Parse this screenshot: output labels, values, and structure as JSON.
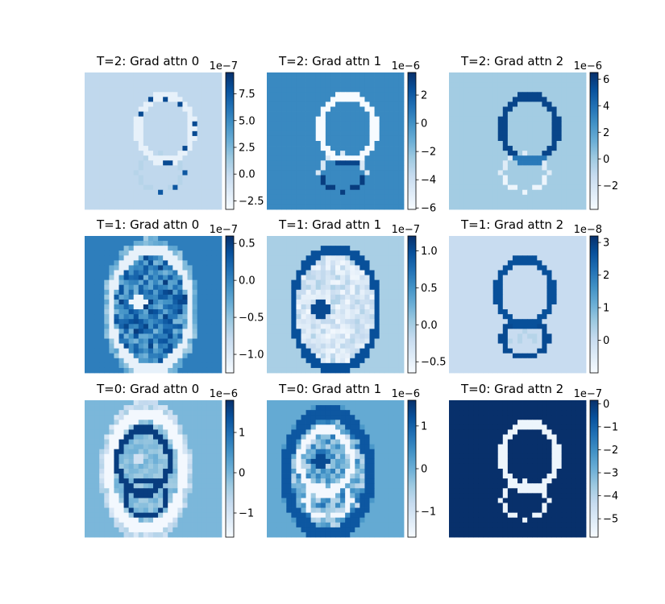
{
  "chart_data": [
    {
      "type": "heatmap",
      "title": "T=2: Grad attn 0",
      "colorbar": {
        "offset_text": "1e−7",
        "ticks": [
          "7.5",
          "5.0",
          "2.5",
          "0.0",
          "−2.5"
        ],
        "tick_values": [
          7.5,
          5.0,
          2.5,
          0.0,
          -2.5
        ],
        "range": [
          -3.3,
          9.5
        ]
      },
      "background_level": 0.27,
      "pattern": "outline"
    },
    {
      "type": "heatmap",
      "title": "T=2: Grad attn 1",
      "colorbar": {
        "offset_text": "1e−6",
        "ticks": [
          "2",
          "0",
          "−2",
          "−4",
          "−6"
        ],
        "tick_values": [
          2,
          0,
          -2,
          -4,
          -6
        ],
        "range": [
          -6.1,
          3.6
        ]
      },
      "background_level": 0.66,
      "pattern": "outline"
    },
    {
      "type": "heatmap",
      "title": "T=2: Grad attn 2",
      "colorbar": {
        "offset_text": "1e−6",
        "ticks": [
          "6",
          "4",
          "2",
          "0",
          "−2"
        ],
        "tick_values": [
          6,
          4,
          2,
          0,
          -2
        ],
        "range": [
          -3.8,
          6.5
        ]
      },
      "background_level": 0.36,
      "pattern": "outline"
    },
    {
      "type": "heatmap",
      "title": "T=1: Grad attn 0",
      "colorbar": {
        "offset_text": "1e−7",
        "ticks": [
          "0.5",
          "0.0",
          "−0.5",
          "−1.0"
        ],
        "tick_values": [
          0.5,
          0.0,
          -0.5,
          -1.0
        ],
        "range": [
          -1.25,
          0.6
        ]
      },
      "background_level": 0.7,
      "pattern": "filled"
    },
    {
      "type": "heatmap",
      "title": "T=1: Grad attn 1",
      "colorbar": {
        "offset_text": "1e−7",
        "ticks": [
          "1.0",
          "0.5",
          "0.0",
          "−0.5"
        ],
        "tick_values": [
          1.0,
          0.5,
          0.0,
          -0.5
        ],
        "range": [
          -0.65,
          1.2
        ]
      },
      "background_level": 0.34,
      "pattern": "filled"
    },
    {
      "type": "heatmap",
      "title": "T=1: Grad attn 2",
      "colorbar": {
        "offset_text": "1e−8",
        "ticks": [
          "3",
          "2",
          "1",
          "0"
        ],
        "tick_values": [
          3,
          2,
          1,
          0
        ],
        "range": [
          -1.0,
          3.2
        ]
      },
      "background_level": 0.24,
      "pattern": "outline"
    },
    {
      "type": "heatmap",
      "title": "T=0: Grad attn 0",
      "colorbar": {
        "offset_text": "1e−6",
        "ticks": [
          "1",
          "0",
          "−1"
        ],
        "tick_values": [
          1,
          0,
          -1
        ],
        "range": [
          -1.6,
          1.8
        ]
      },
      "background_level": 0.46,
      "pattern": "blurred"
    },
    {
      "type": "heatmap",
      "title": "T=0: Grad attn 1",
      "colorbar": {
        "offset_text": "1e−6",
        "ticks": [
          "1",
          "0",
          "−1"
        ],
        "tick_values": [
          1,
          0,
          -1
        ],
        "range": [
          -1.6,
          1.6
        ]
      },
      "background_level": 0.52,
      "pattern": "blurred"
    },
    {
      "type": "heatmap",
      "title": "T=0: Grad attn 2",
      "colorbar": {
        "offset_text": "1e−7",
        "ticks": [
          "0",
          "−1",
          "−2",
          "−3",
          "−4",
          "−5"
        ],
        "tick_values": [
          0,
          -1,
          -2,
          -3,
          -4,
          -5
        ],
        "range": [
          -5.8,
          0.15
        ]
      },
      "background_level": 1.0,
      "pattern": "outline"
    }
  ],
  "colormap": {
    "name": "Blues",
    "light": "#f7fbff",
    "dark": "#08306b"
  }
}
